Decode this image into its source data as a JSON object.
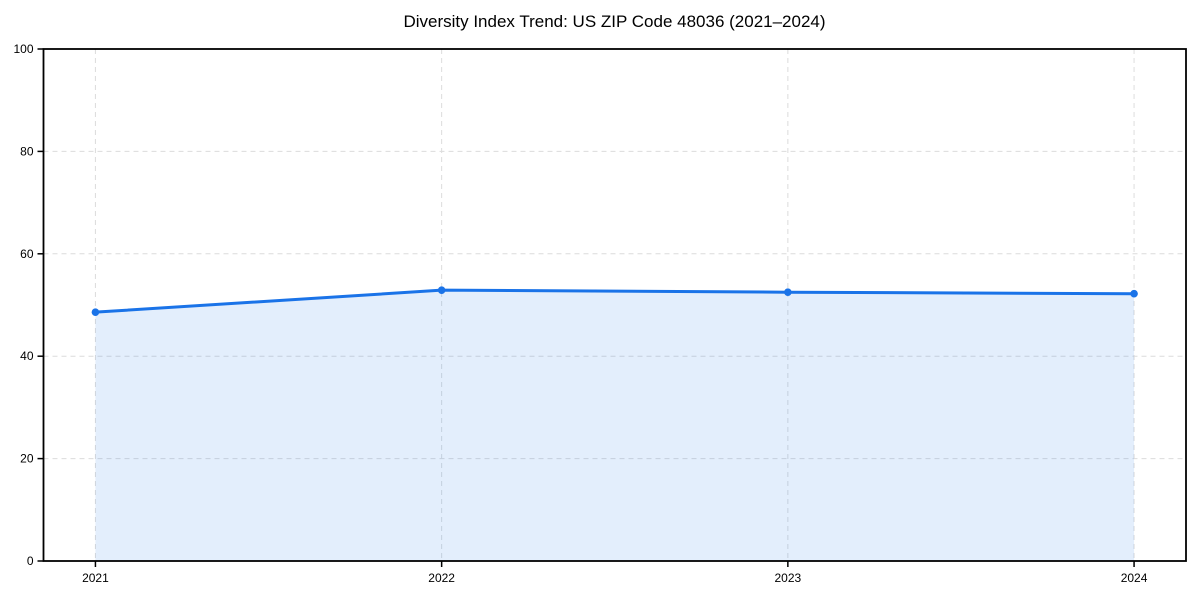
{
  "chart_data": {
    "type": "line",
    "title": "Diversity Index Trend: US ZIP Code 48036 (2021–2024)",
    "categories": [
      "2021",
      "2022",
      "2023",
      "2024"
    ],
    "values": [
      48.6,
      52.9,
      52.5,
      52.2
    ],
    "xlabel": "",
    "ylabel": "",
    "ylim": [
      0,
      100
    ],
    "yticks": [
      0,
      20,
      40,
      60,
      80,
      100
    ],
    "grid": "dashed-both-axes",
    "legend": "none",
    "area_fill": true,
    "markers": true,
    "colors": {
      "line": "#1a73e8",
      "marker": "#1a73e8",
      "fill": "rgba(26,115,232,0.12)",
      "grid": "#dcdcdc",
      "axis": "#000000",
      "tick_label": "#000000",
      "title": "#000000"
    }
  }
}
